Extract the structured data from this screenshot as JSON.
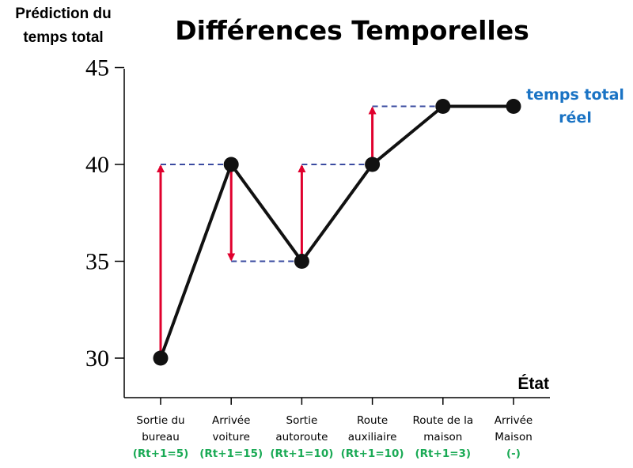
{
  "chart_data": {
    "type": "line",
    "title": "Différences Temporelles",
    "ylabel_lines": [
      "Prédiction du",
      "temps total"
    ],
    "xlabel": "État",
    "ylim": [
      28,
      45
    ],
    "yticks": [
      30,
      35,
      40,
      45
    ],
    "categories": [
      {
        "lines": [
          "Sortie du",
          "bureau"
        ],
        "reward": "(Rt+1=5)"
      },
      {
        "lines": [
          "Arrivée",
          "voiture"
        ],
        "reward": "(Rt+1=15)"
      },
      {
        "lines": [
          "Sortie",
          "autoroute"
        ],
        "reward": "(Rt+1=10)"
      },
      {
        "lines": [
          "Route",
          "auxiliaire"
        ],
        "reward": "(Rt+1=10)"
      },
      {
        "lines": [
          "Route de la",
          "maison"
        ],
        "reward": "(Rt+1=3)"
      },
      {
        "lines": [
          "Arrivée",
          "Maison"
        ],
        "reward": "(-)"
      }
    ],
    "values": [
      30,
      40,
      35,
      40,
      43,
      43
    ],
    "td_updates": [
      {
        "from": 30,
        "to": 40
      },
      {
        "from": 40,
        "to": 35
      },
      {
        "from": 35,
        "to": 40
      },
      {
        "from": 40,
        "to": 43
      }
    ],
    "annotation_lines": [
      "temps total",
      "réel"
    ],
    "colors": {
      "line": "#111111",
      "arrow": "#e0002d",
      "dash": "#3a4ba0",
      "reward": "#1aaa55",
      "annotation": "#1a73c4"
    }
  }
}
